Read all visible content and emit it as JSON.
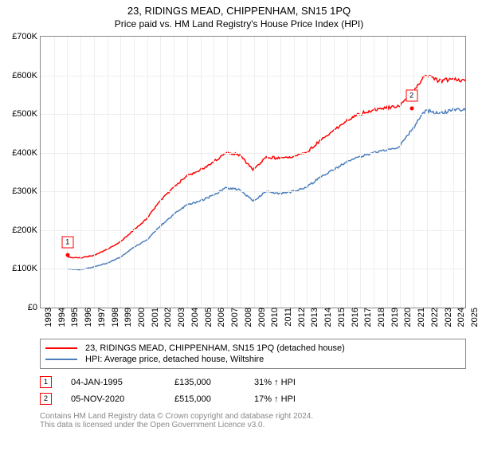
{
  "title": "23, RIDINGS MEAD, CHIPPENHAM, SN15 1PQ",
  "subtitle": "Price paid vs. HM Land Registry's House Price Index (HPI)",
  "chart": {
    "type": "line",
    "ylim": [
      0,
      700
    ],
    "ytick_step": 100,
    "y_prefix": "£",
    "y_suffix": "K",
    "x_years": [
      1993,
      1994,
      1995,
      1996,
      1997,
      1998,
      1999,
      2000,
      2001,
      2002,
      2003,
      2004,
      2005,
      2006,
      2007,
      2008,
      2009,
      2010,
      2011,
      2012,
      2013,
      2014,
      2015,
      2016,
      2017,
      2018,
      2019,
      2020,
      2021,
      2022,
      2023,
      2024,
      2025
    ],
    "grid_color": "#eeeeee",
    "border_color": "#888888",
    "background_color": "#ffffff",
    "series": [
      {
        "name": "23, RIDINGS MEAD, CHIPPENHAM, SN15 1PQ (detached house)",
        "color": "#ff0000",
        "line_width": 1.5,
        "year_values": {
          "1995": 130,
          "1996": 128,
          "1997": 135,
          "1998": 150,
          "1999": 170,
          "2000": 200,
          "2001": 230,
          "2002": 275,
          "2003": 310,
          "2004": 340,
          "2005": 355,
          "2006": 375,
          "2007": 400,
          "2008": 395,
          "2009": 355,
          "2010": 390,
          "2011": 385,
          "2012": 390,
          "2013": 400,
          "2014": 430,
          "2015": 455,
          "2016": 480,
          "2017": 500,
          "2018": 510,
          "2019": 515,
          "2020": 520,
          "2021": 555,
          "2022": 600,
          "2023": 585,
          "2024": 590,
          "2025": 585
        }
      },
      {
        "name": "HPI: Average price, detached house, Wiltshire",
        "color": "#4a7ebb",
        "line_width": 1.5,
        "year_values": {
          "1995": 100,
          "1996": 98,
          "1997": 105,
          "1998": 115,
          "1999": 130,
          "2000": 155,
          "2001": 175,
          "2002": 210,
          "2003": 240,
          "2004": 265,
          "2005": 275,
          "2006": 290,
          "2007": 310,
          "2008": 305,
          "2009": 275,
          "2010": 300,
          "2011": 295,
          "2012": 300,
          "2013": 310,
          "2014": 335,
          "2015": 355,
          "2016": 375,
          "2017": 390,
          "2018": 400,
          "2019": 405,
          "2020": 415,
          "2021": 460,
          "2022": 510,
          "2023": 500,
          "2024": 510,
          "2025": 510
        }
      }
    ],
    "markers": [
      {
        "label": "1",
        "year": 1995.02,
        "value": 135
      },
      {
        "label": "2",
        "year": 2020.85,
        "value": 515
      }
    ]
  },
  "legend": {
    "items": [
      {
        "color": "#ff0000",
        "text": "23, RIDINGS MEAD, CHIPPENHAM, SN15 1PQ (detached house)"
      },
      {
        "color": "#4a7ebb",
        "text": "HPI: Average price, detached house, Wiltshire"
      }
    ]
  },
  "transactions": [
    {
      "marker": "1",
      "date": "04-JAN-1995",
      "price": "£135,000",
      "pct": "31% ↑ HPI"
    },
    {
      "marker": "2",
      "date": "05-NOV-2020",
      "price": "£515,000",
      "pct": "17% ↑ HPI"
    }
  ],
  "attribution": {
    "line1": "Contains HM Land Registry data © Crown copyright and database right 2024.",
    "line2": "This data is licensed under the Open Government Licence v3.0."
  }
}
